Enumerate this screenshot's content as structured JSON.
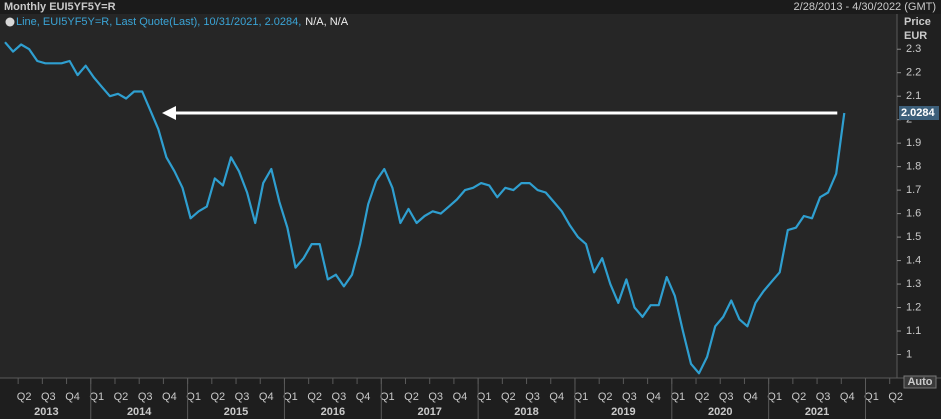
{
  "chart_data": {
    "type": "line",
    "title": "Monthly EUI5YF5Y=R",
    "date_range": "2/28/2013 - 4/30/2022 (GMT)",
    "legend_text": "Line, EUI5YF5Y=R, Last Quote(Last), 10/31/2021, 2.0284,",
    "legend_na": "N/A, N/A",
    "y_label": [
      "Price",
      "EUR"
    ],
    "button": "Auto",
    "color": "#2f9fd0",
    "ylim": [
      0.9,
      2.45
    ],
    "yticks": [
      1,
      1.1,
      1.2,
      1.3,
      1.4,
      1.5,
      1.6,
      1.7,
      1.8,
      1.9,
      2,
      2.1,
      2.2,
      2.3
    ],
    "quarters": [
      "Q2",
      "Q3",
      "Q4",
      "Q1",
      "Q2",
      "Q3",
      "Q4",
      "Q1",
      "Q2",
      "Q3",
      "Q4",
      "Q1",
      "Q2",
      "Q3",
      "Q4",
      "Q1",
      "Q2",
      "Q3",
      "Q4",
      "Q1",
      "Q2",
      "Q3",
      "Q4",
      "Q1",
      "Q2",
      "Q3",
      "Q4",
      "Q1",
      "Q2",
      "Q3",
      "Q4",
      "Q1",
      "Q2",
      "Q3",
      "Q4",
      "Q1",
      "Q2"
    ],
    "years": [
      "2013",
      "2014",
      "2015",
      "2016",
      "2017",
      "2018",
      "2019",
      "2020",
      "2021"
    ],
    "values": [
      2.33,
      2.29,
      2.32,
      2.3,
      2.25,
      2.24,
      2.24,
      2.24,
      2.25,
      2.19,
      2.23,
      2.18,
      2.14,
      2.1,
      2.11,
      2.09,
      2.12,
      2.12,
      2.04,
      1.96,
      1.84,
      1.78,
      1.71,
      1.58,
      1.61,
      1.63,
      1.75,
      1.72,
      1.84,
      1.78,
      1.69,
      1.56,
      1.73,
      1.79,
      1.65,
      1.54,
      1.37,
      1.41,
      1.47,
      1.47,
      1.32,
      1.34,
      1.29,
      1.34,
      1.47,
      1.64,
      1.74,
      1.79,
      1.71,
      1.56,
      1.62,
      1.56,
      1.59,
      1.61,
      1.6,
      1.63,
      1.66,
      1.7,
      1.71,
      1.73,
      1.72,
      1.67,
      1.71,
      1.7,
      1.73,
      1.73,
      1.7,
      1.69,
      1.65,
      1.61,
      1.55,
      1.5,
      1.47,
      1.35,
      1.41,
      1.3,
      1.22,
      1.32,
      1.2,
      1.16,
      1.21,
      1.21,
      1.33,
      1.25,
      1.1,
      0.96,
      0.92,
      0.99,
      1.12,
      1.16,
      1.23,
      1.15,
      1.12,
      1.22,
      1.27,
      1.31,
      1.35,
      1.53,
      1.54,
      1.59,
      1.58,
      1.67,
      1.69,
      1.77,
      2.0284
    ]
  }
}
